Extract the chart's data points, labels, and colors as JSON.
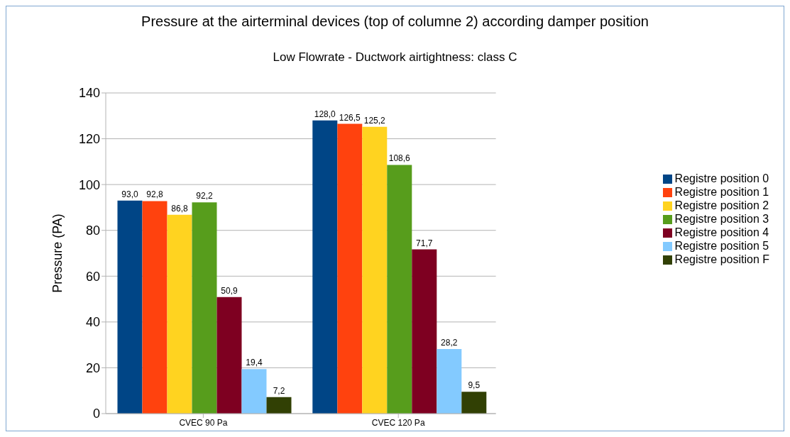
{
  "chart_data": {
    "type": "bar",
    "title": "Pressure at the airterminal devices (top of columne 2) according damper position",
    "subtitle": "Low Flowrate - Ductwork airtightness: class C",
    "ylabel": "Pressure (PA)",
    "categories": [
      "CVEC 90 Pa",
      "CVEC 120 Pa"
    ],
    "series": [
      {
        "name": "Registre position 0",
        "color": "#004586",
        "values": [
          93.0,
          128.0
        ],
        "value_labels": [
          "93,0",
          "128,0"
        ]
      },
      {
        "name": "Registre position 1",
        "color": "#ff420e",
        "values": [
          92.8,
          126.5
        ],
        "value_labels": [
          "92,8",
          "126,5"
        ]
      },
      {
        "name": "Registre position 2",
        "color": "#ffd320",
        "values": [
          86.8,
          125.2
        ],
        "value_labels": [
          "86,8",
          "125,2"
        ]
      },
      {
        "name": "Registre position 3",
        "color": "#579d1c",
        "values": [
          92.2,
          108.6
        ],
        "value_labels": [
          "92,2",
          "108,6"
        ]
      },
      {
        "name": "Registre position 4",
        "color": "#7e0021",
        "values": [
          50.9,
          71.7
        ],
        "value_labels": [
          "50,9",
          "71,7"
        ]
      },
      {
        "name": "Registre position 5",
        "color": "#83caff",
        "values": [
          19.4,
          28.2
        ],
        "value_labels": [
          "19,4",
          "28,2"
        ]
      },
      {
        "name": "Registre position F",
        "color": "#314004",
        "values": [
          7.2,
          9.5
        ],
        "value_labels": [
          "7,2",
          "9,5"
        ]
      }
    ],
    "ylim": [
      0,
      140
    ],
    "yticks": [
      0,
      20,
      40,
      60,
      80,
      100,
      120,
      140
    ],
    "grid": "y",
    "legend": "right"
  }
}
